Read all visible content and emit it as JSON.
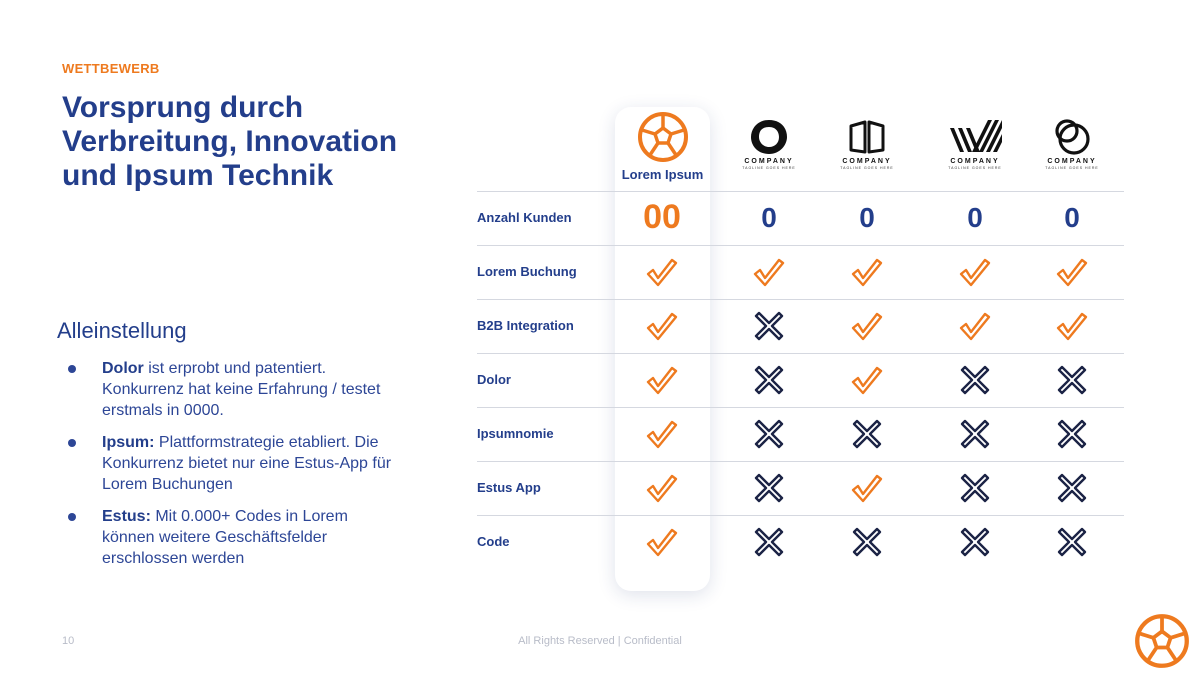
{
  "header": {
    "eyebrow": "WETTBEWERB",
    "title": "Vorsprung durch Verbreitung, Innovation und Ipsum Technik"
  },
  "left": {
    "subhead": "Alleinstellung",
    "bullets": [
      {
        "bold": "Dolor",
        "text": " ist erprobt und patentiert. Konkurrenz hat keine Erfahrung / testet erstmals in 0000."
      },
      {
        "bold": "Ipsum:",
        "text": " Plattformstrategie etabliert. Die Konkurrenz bietet nur eine Estus-App für Lorem Buchungen"
      },
      {
        "bold": "Estus:",
        "text": " Mit 0.000+ Codes in Lorem können weitere Geschäftsfelder erschlossen werden"
      }
    ]
  },
  "table": {
    "own_brand": "Lorem Ipsum",
    "competitors": [
      {
        "logo": "ring-logo-icon",
        "name": "COMPANY",
        "tagline": "TAGLINE GOES HERE"
      },
      {
        "logo": "book-logo-icon",
        "name": "COMPANY",
        "tagline": "TAGLINE GOES HERE"
      },
      {
        "logo": "stripes-logo-icon",
        "name": "COMPANY",
        "tagline": "TAGLINE GOES HERE"
      },
      {
        "logo": "circles-logo-icon",
        "name": "COMPANY",
        "tagline": "TAGLINE GOES HERE"
      }
    ],
    "rows": [
      {
        "label": "Anzahl Kunden",
        "kind": "count",
        "own": "00",
        "competitors": [
          "0",
          "0",
          "0",
          "0"
        ]
      },
      {
        "label": "Lorem Buchung",
        "kind": "mark",
        "own": true,
        "competitors": [
          true,
          true,
          true,
          true
        ]
      },
      {
        "label": "B2B Integration",
        "kind": "mark",
        "own": true,
        "competitors": [
          false,
          true,
          true,
          true
        ]
      },
      {
        "label": "Dolor",
        "kind": "mark",
        "own": true,
        "competitors": [
          false,
          true,
          false,
          false
        ]
      },
      {
        "label": "Ipsumnomie",
        "kind": "mark",
        "own": true,
        "competitors": [
          false,
          false,
          false,
          false
        ]
      },
      {
        "label": "Estus App",
        "kind": "mark",
        "own": true,
        "competitors": [
          false,
          true,
          false,
          false
        ]
      },
      {
        "label": "Code",
        "kind": "mark",
        "own": true,
        "competitors": [
          false,
          false,
          false,
          false
        ]
      }
    ],
    "colors": {
      "check": "#ee7a1f",
      "cross": "#1b2345",
      "accent": "#ee7a1f",
      "navy": "#233e8b"
    }
  },
  "footer": {
    "page_number": "10",
    "center": "All Rights Reserved | Confidential"
  }
}
